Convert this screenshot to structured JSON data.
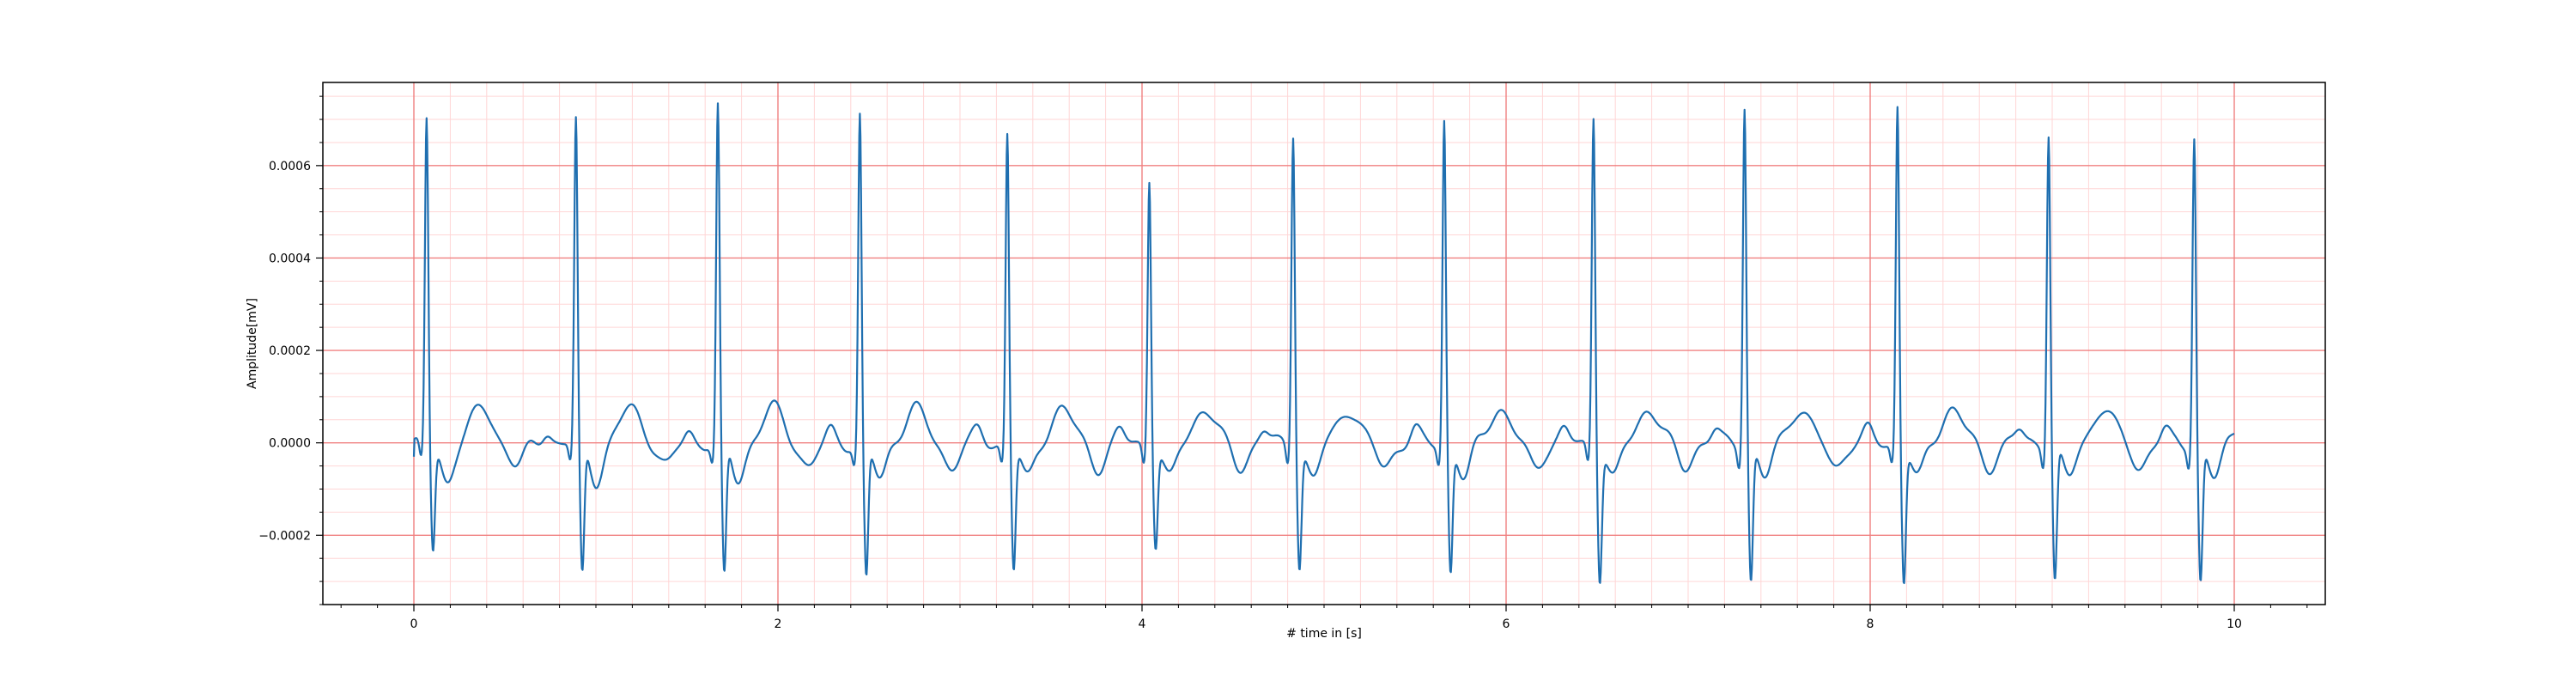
{
  "chart_data": {
    "type": "line",
    "title": "",
    "xlabel": "# time in [s]",
    "ylabel": "Amplitude[mV]",
    "xlim": [
      -0.5,
      10.5
    ],
    "ylim": [
      -0.00035,
      0.00078
    ],
    "x_ticks": [
      0,
      2,
      4,
      6,
      8,
      10
    ],
    "x_tick_labels": [
      "0",
      "2",
      "4",
      "6",
      "8",
      "10"
    ],
    "y_ticks": [
      -0.0002,
      0.0,
      0.0002,
      0.0004,
      0.0006
    ],
    "y_tick_labels": [
      "−0.0002",
      "0.0000",
      "0.0002",
      "0.0004",
      "0.0006"
    ],
    "grid": true,
    "grid_major_color": "#f08080",
    "grid_minor_color": "#ffd6d6",
    "line_color": "#1f6fb0",
    "duration_s": 10,
    "beats": [
      {
        "t": 0.07,
        "r": 0.0007,
        "s": -0.00023
      },
      {
        "t": 0.89,
        "r": 0.000695,
        "s": -0.000285
      },
      {
        "t": 1.67,
        "r": 0.000725,
        "s": -0.00029
      },
      {
        "t": 2.45,
        "r": 0.00071,
        "s": -0.00029
      },
      {
        "t": 3.26,
        "r": 0.000675,
        "s": -0.000265
      },
      {
        "t": 4.04,
        "r": 0.00058,
        "s": -0.00021
      },
      {
        "t": 4.83,
        "r": 0.00068,
        "s": -0.000255
      },
      {
        "t": 5.66,
        "r": 0.000705,
        "s": -0.00027
      },
      {
        "t": 6.48,
        "r": 0.000715,
        "s": -0.00028
      },
      {
        "t": 7.31,
        "r": 0.00074,
        "s": -0.00029
      },
      {
        "t": 8.15,
        "r": 0.000735,
        "s": -0.00029
      },
      {
        "t": 8.98,
        "r": 0.00068,
        "s": -0.00029
      },
      {
        "t": 9.78,
        "r": 0.00067,
        "s": -0.000295
      }
    ]
  }
}
